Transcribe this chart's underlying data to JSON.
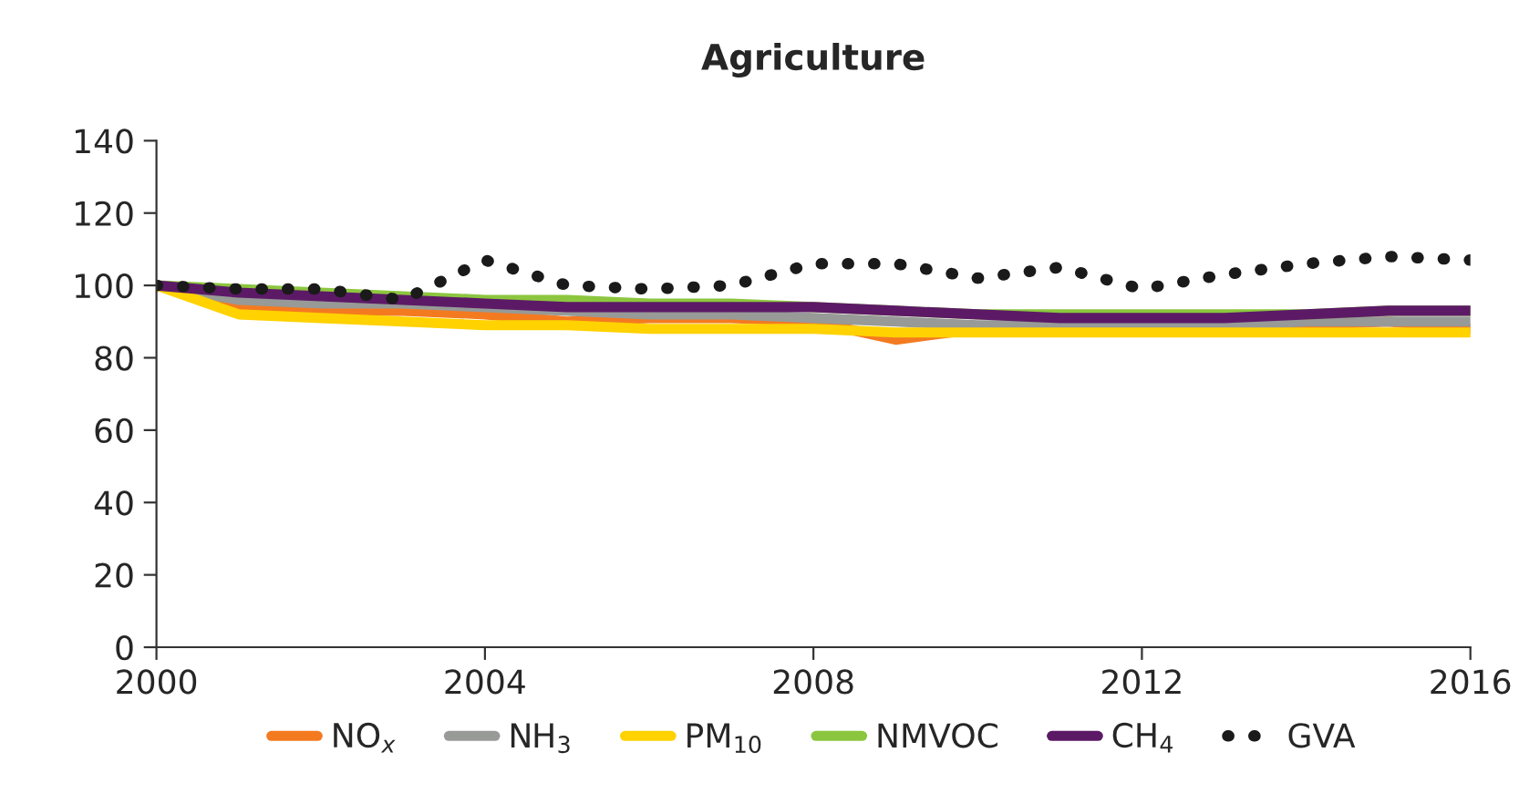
{
  "chart_data": {
    "type": "line",
    "title": "Agriculture",
    "x": [
      "2000",
      "2001",
      "2002",
      "2003",
      "2004",
      "2005",
      "2006",
      "2007",
      "2008",
      "2009",
      "2010",
      "2011",
      "2012",
      "2013",
      "2014",
      "2015",
      "2016"
    ],
    "series": [
      {
        "name": "NO$_{x}$",
        "color": "#f47a20",
        "values": [
          100,
          94,
          93,
          93,
          92,
          90,
          91,
          91,
          90,
          85,
          88,
          88,
          88,
          88,
          89,
          90,
          88
        ]
      },
      {
        "name": "NH$_{3}$",
        "color": "#979a97",
        "values": [
          100,
          96,
          95,
          95,
          94,
          93,
          92,
          92,
          91,
          90,
          89,
          89,
          89,
          89,
          90,
          90,
          90
        ]
      },
      {
        "name": "PM$_{10}$",
        "color": "#ffd200",
        "values": [
          100,
          92,
          91,
          90,
          89,
          89,
          88,
          88,
          88,
          87,
          87,
          87,
          87,
          87,
          87,
          87,
          87
        ]
      },
      {
        "name": "NMVOC",
        "color": "#8cc63f",
        "values": [
          100,
          99,
          98,
          97,
          96,
          96,
          95,
          95,
          94,
          93,
          92,
          92,
          92,
          92,
          92,
          93,
          93
        ]
      },
      {
        "name": "CH$_{4}$",
        "color": "#5c1a66",
        "values": [
          100,
          98,
          97,
          96,
          95,
          94,
          94,
          94,
          94,
          93,
          92,
          91,
          91,
          91,
          92,
          93,
          93
        ]
      },
      {
        "name": "GVA",
        "color": "#1a1a1a",
        "line_style": "dotted",
        "values": [
          100,
          99,
          99,
          96,
          107,
          100,
          99,
          100,
          106,
          106,
          102,
          105,
          99,
          103,
          106,
          108,
          107
        ]
      }
    ],
    "xlim": [
      "2000",
      "2016"
    ],
    "xticks": [
      "2000",
      "2004",
      "2008",
      "2012",
      "2016"
    ],
    "ylim": [
      0,
      140
    ],
    "yticks": [
      0,
      20,
      40,
      60,
      80,
      100,
      120,
      140
    ],
    "grid": false,
    "legend": "bottom",
    "line_style": "solid"
  }
}
